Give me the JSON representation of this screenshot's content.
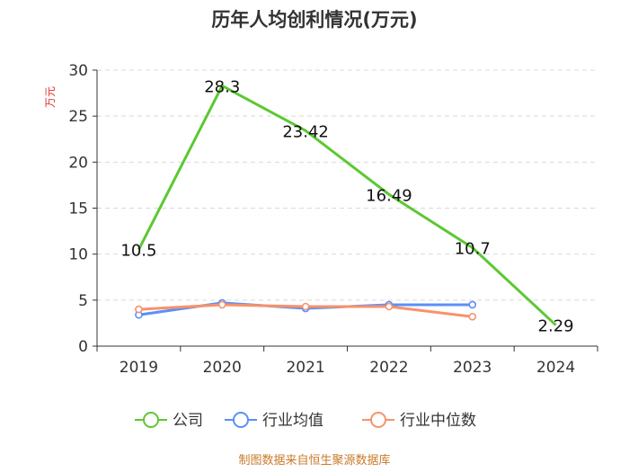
{
  "chart_data": {
    "type": "line",
    "title": "历年人均创利情况(万元)",
    "ylabel": "万元",
    "xlabel": "",
    "categories": [
      "2019",
      "2020",
      "2021",
      "2022",
      "2023",
      "2024"
    ],
    "ylim": [
      0,
      30
    ],
    "yticks": [
      0,
      5,
      10,
      15,
      20,
      25,
      30
    ],
    "grid": true,
    "legend_position": "bottom",
    "series": [
      {
        "name": "公司",
        "color": "#5cc832",
        "values": [
          10.5,
          28.3,
          23.42,
          16.49,
          10.7,
          2.29
        ],
        "labels": [
          "10.5",
          "28.3",
          "23.42",
          "16.49",
          "10.7",
          "2.29"
        ]
      },
      {
        "name": "行业均值",
        "color": "#5b8ff9",
        "values": [
          3.4,
          4.7,
          4.1,
          4.5,
          4.5,
          null
        ]
      },
      {
        "name": "行业中位数",
        "color": "#f7926b",
        "values": [
          4.0,
          4.5,
          4.3,
          4.3,
          3.2,
          null
        ]
      }
    ]
  },
  "source_text": "制图数据来自恒生聚源数据库"
}
